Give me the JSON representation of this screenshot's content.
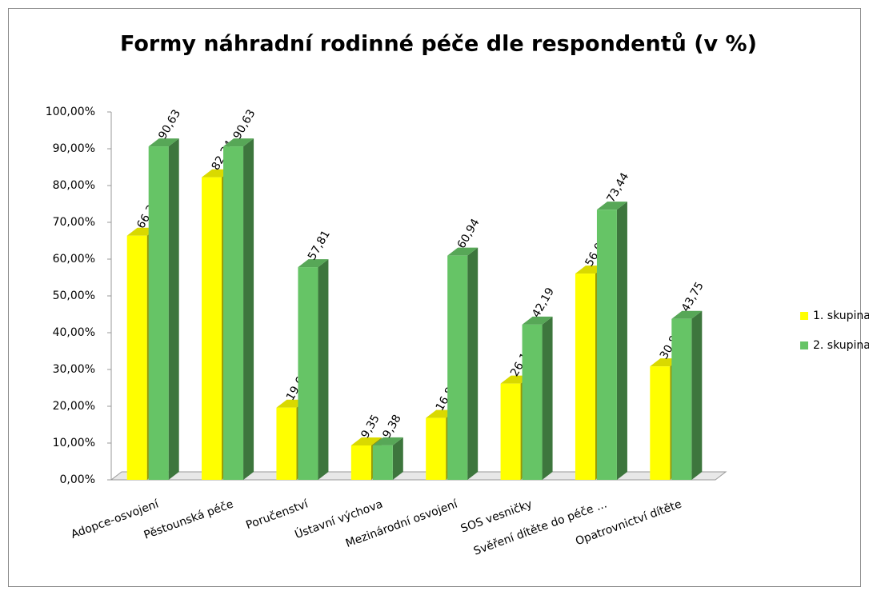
{
  "chart_data": {
    "type": "bar",
    "title": "Formy náhradní rodinné péče dle respondentů (v %)",
    "categories": [
      "Adopce-osvojení",
      "Pěstounská péče",
      "Poručenství",
      "Ústavní výchova",
      "Mezinárodní osvojení",
      "SOS vesničky",
      "Svěření dítěte do péče ...",
      "Opatrovnictví dítěte"
    ],
    "series": [
      {
        "name": "1. skupina",
        "color": "#ffff00",
        "values": [
          66.36,
          82.24,
          19.63,
          9.35,
          16.82,
          26.17,
          56.07,
          30.84
        ],
        "value_labels": [
          "66,36",
          "82,24",
          "19,63",
          "9,35",
          "16,82",
          "26,17",
          "56,07",
          "30,84"
        ]
      },
      {
        "name": "2. skupina",
        "color": "#66c466",
        "values": [
          90.63,
          90.63,
          57.81,
          9.38,
          60.94,
          42.19,
          73.44,
          43.75
        ],
        "value_labels": [
          "90,63",
          "90,63",
          "57,81",
          "9,38",
          "60,94",
          "42,19",
          "73,44",
          "43,75"
        ]
      }
    ],
    "ylim": [
      0,
      100
    ],
    "yticks": [
      {
        "value": 0,
        "label": "0,00%"
      },
      {
        "value": 10,
        "label": "10,00%"
      },
      {
        "value": 20,
        "label": "20,00%"
      },
      {
        "value": 30,
        "label": "30,00%"
      },
      {
        "value": 40,
        "label": "40,00%"
      },
      {
        "value": 50,
        "label": "50,00%"
      },
      {
        "value": 60,
        "label": "60,00%"
      },
      {
        "value": 70,
        "label": "70,00%"
      },
      {
        "value": 80,
        "label": "80,00%"
      },
      {
        "value": 90,
        "label": "90,00%"
      },
      {
        "value": 100,
        "label": "100,00%"
      }
    ],
    "legend": "right"
  }
}
